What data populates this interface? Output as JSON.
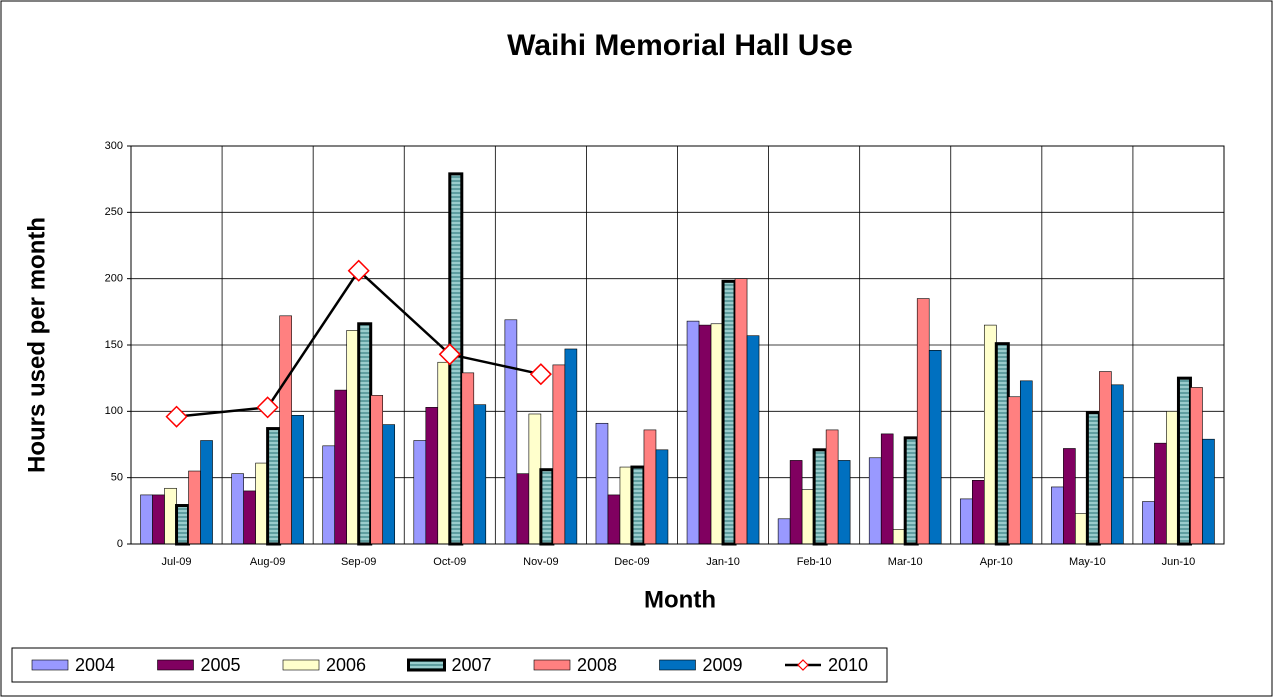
{
  "chart_data": {
    "type": "bar",
    "title": "Waihi Memorial Hall Use",
    "x_label": "Month",
    "y_label": "Hours used per month",
    "categories": [
      "Jul-09",
      "Aug-09",
      "Sep-09",
      "Oct-09",
      "Nov-09",
      "Dec-09",
      "Jan-10",
      "Feb-10",
      "Mar-10",
      "Apr-10",
      "May-10",
      "Jun-10"
    ],
    "ylim": [
      0,
      300
    ],
    "yticks": [
      0,
      50,
      100,
      150,
      200,
      250,
      300
    ],
    "grid": true,
    "legend": "bottom",
    "series": [
      {
        "name": "2004",
        "type": "bar",
        "color": "#9999ff",
        "values": [
          37,
          53,
          74,
          78,
          169,
          91,
          168,
          19,
          65,
          34,
          43,
          32
        ]
      },
      {
        "name": "2005",
        "type": "bar",
        "color": "#800060",
        "values": [
          37,
          40,
          116,
          103,
          53,
          37,
          165,
          63,
          83,
          48,
          72,
          76
        ]
      },
      {
        "name": "2006",
        "type": "bar",
        "color": "#ffffcc",
        "values": [
          42,
          61,
          161,
          137,
          98,
          58,
          166,
          41,
          11,
          165,
          23,
          100
        ]
      },
      {
        "name": "2007",
        "type": "bar",
        "color": "#99cccc",
        "values": [
          29,
          87,
          166,
          279,
          56,
          58,
          198,
          71,
          80,
          151,
          99,
          125
        ]
      },
      {
        "name": "2008",
        "type": "bar",
        "color": "#ff8080",
        "values": [
          55,
          172,
          112,
          129,
          135,
          86,
          200,
          86,
          185,
          111,
          130,
          118
        ]
      },
      {
        "name": "2009",
        "type": "bar",
        "color": "#0070c0",
        "values": [
          78,
          97,
          90,
          105,
          147,
          71,
          157,
          63,
          146,
          123,
          120,
          79
        ]
      },
      {
        "name": "2010",
        "type": "line",
        "color": "#000000",
        "marker_color": "#ff0000",
        "values": [
          96,
          103,
          206,
          143,
          128,
          null,
          null,
          null,
          null,
          null,
          null,
          null
        ]
      }
    ]
  }
}
